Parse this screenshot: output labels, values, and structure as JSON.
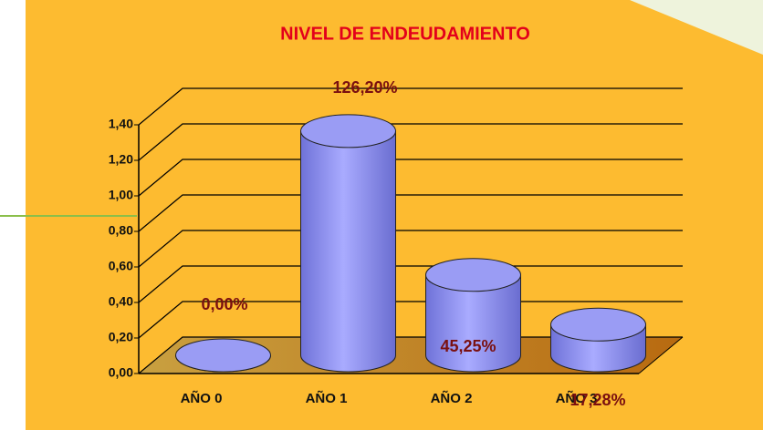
{
  "chart_data": {
    "type": "bar",
    "title": "NIVEL DE ENDEUDAMIENTO",
    "categories": [
      "AÑO 0",
      "AÑO 1",
      "AÑO 2",
      "AÑO 3"
    ],
    "values": [
      0,
      1.262,
      0.4525,
      0.1728
    ],
    "value_labels": [
      "0,00%",
      "126,20%",
      "45,25%",
      "17,28%"
    ],
    "color": "#9a9cf4",
    "ylim": [
      0,
      1.4
    ],
    "yticks": [
      {
        "value": 0,
        "label": "0,00"
      },
      {
        "value": 0.2,
        "label": "0,20"
      },
      {
        "value": 0.4,
        "label": "0,40"
      },
      {
        "value": 0.6,
        "label": "0,60"
      },
      {
        "value": 0.8,
        "label": "0,80"
      },
      {
        "value": 1.0,
        "label": "1,00"
      },
      {
        "value": 1.2,
        "label": "1,20"
      },
      {
        "value": 1.4,
        "label": "1,40"
      }
    ],
    "grid": true
  }
}
